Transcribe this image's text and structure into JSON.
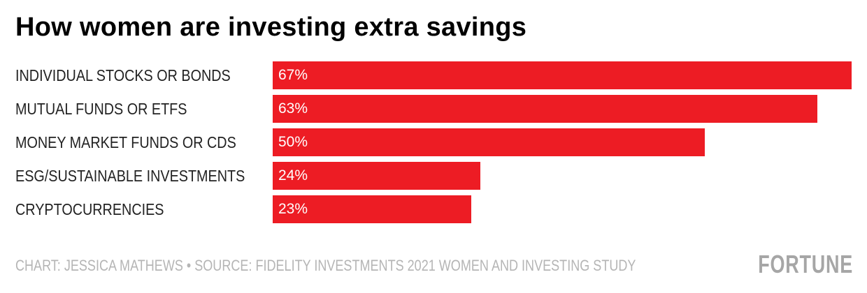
{
  "chart_data": {
    "type": "bar",
    "orientation": "horizontal",
    "title": "How women are investing extra savings",
    "categories": [
      "INDIVIDUAL STOCKS OR BONDS",
      "MUTUAL FUNDS OR ETFS",
      "MONEY MARKET FUNDS OR CDS",
      "ESG/SUSTAINABLE INVESTMENTS",
      "CRYPTOCURRENCIES"
    ],
    "values": [
      67,
      63,
      50,
      24,
      23
    ],
    "value_labels": [
      "67%",
      "63%",
      "50%",
      "24%",
      "23%"
    ],
    "unit": "%",
    "xlim": [
      0,
      67
    ],
    "grid": false,
    "bar_color": "#ed1c24"
  },
  "footer": {
    "credit": "CHART: JESSICA MATHEWS • SOURCE: FIDELITY INVESTMENTS 2021 WOMEN AND INVESTING STUDY",
    "logo": "FORTUNE"
  }
}
